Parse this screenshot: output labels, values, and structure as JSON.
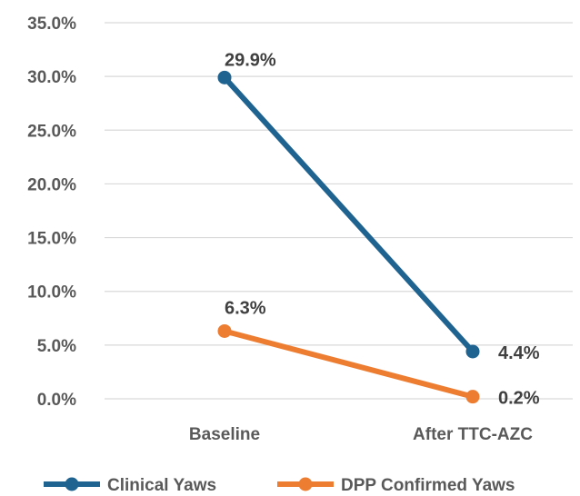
{
  "chart_data": {
    "type": "line",
    "categories": [
      "Baseline",
      "After TTC-AZC"
    ],
    "series": [
      {
        "name": "Clinical Yaws",
        "values": [
          29.9,
          4.4
        ],
        "labels": [
          "29.9%",
          "4.4%"
        ],
        "color": "#1f6391"
      },
      {
        "name": "DPP Confirmed Yaws",
        "values": [
          6.3,
          0.2
        ],
        "labels": [
          "6.3%",
          "0.2%"
        ],
        "color": "#ed7d31"
      }
    ],
    "ylim": [
      0,
      35
    ],
    "yticks": [
      0,
      5,
      10,
      15,
      20,
      25,
      30,
      35
    ],
    "ytick_labels": [
      "0.0%",
      "5.0%",
      "10.0%",
      "15.0%",
      "20.0%",
      "25.0%",
      "30.0%",
      "35.0%"
    ],
    "grid": true,
    "legend_position": "bottom",
    "title": "",
    "xlabel": "",
    "ylabel": ""
  }
}
